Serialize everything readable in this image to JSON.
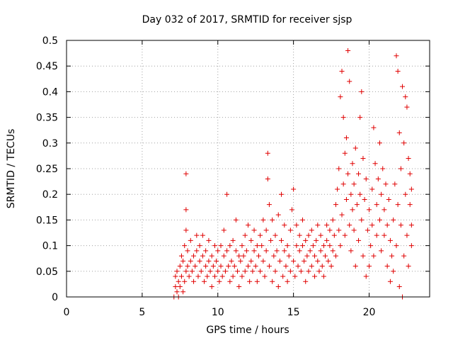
{
  "chart_data": {
    "type": "scatter",
    "title": "Day 032 of 2017, SRMTID for receiver sjsp",
    "xlabel": "GPS time / hours",
    "ylabel": "SRMTID / TECUs",
    "xlim": [
      0,
      24
    ],
    "ylim": [
      0,
      0.5
    ],
    "xticks": [
      "0",
      "5",
      "10",
      "15",
      "20"
    ],
    "yticks": [
      "0",
      "0.05",
      "0.1",
      "0.15",
      "0.2",
      "0.25",
      "0.3",
      "0.35",
      "0.4",
      "0.45",
      "0.5"
    ],
    "grid": true,
    "marker": "+",
    "marker_color": "#e00000",
    "series": [
      {
        "points": [
          [
            7.1,
            0.0
          ],
          [
            7.2,
            0.02
          ],
          [
            7.2,
            0.04
          ],
          [
            7.3,
            0.01
          ],
          [
            7.3,
            0.05
          ],
          [
            7.4,
            0.03
          ],
          [
            7.4,
            0.0
          ],
          [
            7.5,
            0.06
          ],
          [
            7.5,
            0.02
          ],
          [
            7.6,
            0.08
          ],
          [
            7.6,
            0.04
          ],
          [
            7.7,
            0.01
          ],
          [
            7.7,
            0.07
          ],
          [
            7.8,
            0.03
          ],
          [
            7.8,
            0.1
          ],
          [
            7.9,
            0.05
          ],
          [
            7.9,
            0.13
          ],
          [
            7.9,
            0.17
          ],
          [
            7.9,
            0.24
          ],
          [
            8.0,
            0.06
          ],
          [
            8.0,
            0.09
          ],
          [
            8.1,
            0.04
          ],
          [
            8.2,
            0.07
          ],
          [
            8.2,
            0.11
          ],
          [
            8.3,
            0.05
          ],
          [
            8.4,
            0.08
          ],
          [
            8.4,
            0.03
          ],
          [
            8.5,
            0.06
          ],
          [
            8.6,
            0.09
          ],
          [
            8.6,
            0.12
          ],
          [
            8.7,
            0.04
          ],
          [
            8.8,
            0.07
          ],
          [
            8.8,
            0.1
          ],
          [
            8.9,
            0.05
          ],
          [
            9.0,
            0.08
          ],
          [
            9.0,
            0.12
          ],
          [
            9.1,
            0.03
          ],
          [
            9.2,
            0.06
          ],
          [
            9.2,
            0.09
          ],
          [
            9.3,
            0.04
          ],
          [
            9.4,
            0.07
          ],
          [
            9.4,
            0.11
          ],
          [
            9.5,
            0.05
          ],
          [
            9.6,
            0.08
          ],
          [
            9.6,
            0.02
          ],
          [
            9.7,
            0.06
          ],
          [
            9.8,
            0.1
          ],
          [
            9.8,
            0.04
          ],
          [
            9.9,
            0.07
          ],
          [
            10.0,
            0.05
          ],
          [
            10.0,
            0.09
          ],
          [
            10.1,
            0.03
          ],
          [
            10.2,
            0.06
          ],
          [
            10.2,
            0.1
          ],
          [
            10.3,
            0.04
          ],
          [
            10.4,
            0.08
          ],
          [
            10.4,
            0.13
          ],
          [
            10.5,
            0.05
          ],
          [
            10.6,
            0.09
          ],
          [
            10.6,
            0.2
          ],
          [
            10.7,
            0.06
          ],
          [
            10.8,
            0.03
          ],
          [
            10.8,
            0.1
          ],
          [
            10.9,
            0.07
          ],
          [
            11.0,
            0.04
          ],
          [
            11.0,
            0.11
          ],
          [
            11.1,
            0.06
          ],
          [
            11.2,
            0.09
          ],
          [
            11.2,
            0.15
          ],
          [
            11.3,
            0.05
          ],
          [
            11.4,
            0.08
          ],
          [
            11.4,
            0.02
          ],
          [
            11.5,
            0.07
          ],
          [
            11.6,
            0.1
          ],
          [
            11.6,
            0.04
          ],
          [
            11.7,
            0.08
          ],
          [
            11.8,
            0.12
          ],
          [
            11.8,
            0.05
          ],
          [
            11.9,
            0.09
          ],
          [
            12.0,
            0.06
          ],
          [
            12.0,
            0.14
          ],
          [
            12.1,
            0.03
          ],
          [
            12.2,
            0.07
          ],
          [
            12.2,
            0.11
          ],
          [
            12.3,
            0.05
          ],
          [
            12.4,
            0.09
          ],
          [
            12.4,
            0.13
          ],
          [
            12.5,
            0.06
          ],
          [
            12.6,
            0.1
          ],
          [
            12.6,
            0.03
          ],
          [
            12.7,
            0.08
          ],
          [
            12.8,
            0.12
          ],
          [
            12.8,
            0.05
          ],
          [
            12.9,
            0.1
          ],
          [
            13.0,
            0.07
          ],
          [
            13.0,
            0.15
          ],
          [
            13.1,
            0.04
          ],
          [
            13.2,
            0.09
          ],
          [
            13.2,
            0.13
          ],
          [
            13.3,
            0.28
          ],
          [
            13.3,
            0.23
          ],
          [
            13.4,
            0.06
          ],
          [
            13.4,
            0.18
          ],
          [
            13.5,
            0.11
          ],
          [
            13.6,
            0.03
          ],
          [
            13.6,
            0.15
          ],
          [
            13.7,
            0.08
          ],
          [
            13.8,
            0.05
          ],
          [
            13.8,
            0.12
          ],
          [
            13.9,
            0.09
          ],
          [
            14.0,
            0.02
          ],
          [
            14.0,
            0.16
          ],
          [
            14.1,
            0.07
          ],
          [
            14.2,
            0.11
          ],
          [
            14.2,
            0.2
          ],
          [
            14.3,
            0.04
          ],
          [
            14.4,
            0.09
          ],
          [
            14.4,
            0.14
          ],
          [
            14.5,
            0.06
          ],
          [
            14.6,
            0.1
          ],
          [
            14.6,
            0.03
          ],
          [
            14.7,
            0.08
          ],
          [
            14.8,
            0.13
          ],
          [
            14.8,
            0.05
          ],
          [
            14.9,
            0.17
          ],
          [
            15.0,
            0.07
          ],
          [
            15.0,
            0.21
          ],
          [
            15.1,
            0.04
          ],
          [
            15.2,
            0.1
          ],
          [
            15.2,
            0.14
          ],
          [
            15.3,
            0.06
          ],
          [
            15.4,
            0.09
          ],
          [
            15.4,
            0.12
          ],
          [
            15.5,
            0.05
          ],
          [
            15.6,
            0.1
          ],
          [
            15.6,
            0.15
          ],
          [
            15.7,
            0.07
          ],
          [
            15.8,
            0.03
          ],
          [
            15.8,
            0.11
          ],
          [
            15.9,
            0.08
          ],
          [
            16.0,
            0.12
          ],
          [
            16.0,
            0.05
          ],
          [
            16.1,
            0.09
          ],
          [
            16.2,
            0.13
          ],
          [
            16.2,
            0.06
          ],
          [
            16.3,
            0.1
          ],
          [
            16.4,
            0.04
          ],
          [
            16.4,
            0.08
          ],
          [
            16.5,
            0.11
          ],
          [
            16.6,
            0.07
          ],
          [
            16.6,
            0.14
          ],
          [
            16.7,
            0.05
          ],
          [
            16.8,
            0.09
          ],
          [
            16.8,
            0.12
          ],
          [
            16.9,
            0.06
          ],
          [
            17.0,
            0.1
          ],
          [
            17.0,
            0.04
          ],
          [
            17.1,
            0.08
          ],
          [
            17.2,
            0.11
          ],
          [
            17.2,
            0.14
          ],
          [
            17.3,
            0.07
          ],
          [
            17.4,
            0.1
          ],
          [
            17.4,
            0.13
          ],
          [
            17.5,
            0.06
          ],
          [
            17.6,
            0.09
          ],
          [
            17.6,
            0.15
          ],
          [
            17.7,
            0.12
          ],
          [
            17.8,
            0.18
          ],
          [
            17.8,
            0.08
          ],
          [
            17.9,
            0.21
          ],
          [
            18.0,
            0.13
          ],
          [
            18.0,
            0.25
          ],
          [
            18.1,
            0.1
          ],
          [
            18.1,
            0.39
          ],
          [
            18.2,
            0.44
          ],
          [
            18.2,
            0.16
          ],
          [
            18.3,
            0.22
          ],
          [
            18.3,
            0.35
          ],
          [
            18.4,
            0.12
          ],
          [
            18.4,
            0.28
          ],
          [
            18.5,
            0.19
          ],
          [
            18.5,
            0.31
          ],
          [
            18.6,
            0.48
          ],
          [
            18.6,
            0.24
          ],
          [
            18.7,
            0.14
          ],
          [
            18.7,
            0.42
          ],
          [
            18.8,
            0.2
          ],
          [
            18.8,
            0.09
          ],
          [
            18.9,
            0.26
          ],
          [
            18.9,
            0.17
          ],
          [
            19.0,
            0.22
          ],
          [
            19.0,
            0.13
          ],
          [
            19.1,
            0.29
          ],
          [
            19.1,
            0.06
          ],
          [
            19.2,
            0.18
          ],
          [
            19.3,
            0.24
          ],
          [
            19.3,
            0.11
          ],
          [
            19.4,
            0.35
          ],
          [
            19.4,
            0.2
          ],
          [
            19.5,
            0.4
          ],
          [
            19.5,
            0.15
          ],
          [
            19.6,
            0.27
          ],
          [
            19.6,
            0.08
          ],
          [
            19.7,
            0.19
          ],
          [
            19.8,
            0.04
          ],
          [
            19.8,
            0.23
          ],
          [
            19.9,
            0.13
          ],
          [
            20.0,
            0.06
          ],
          [
            20.0,
            0.17
          ],
          [
            20.1,
            0.1
          ],
          [
            20.2,
            0.21
          ],
          [
            20.2,
            0.14
          ],
          [
            20.3,
            0.33
          ],
          [
            20.3,
            0.08
          ],
          [
            20.4,
            0.26
          ],
          [
            20.5,
            0.18
          ],
          [
            20.5,
            0.12
          ],
          [
            20.6,
            0.23
          ],
          [
            20.7,
            0.3
          ],
          [
            20.7,
            0.15
          ],
          [
            20.8,
            0.2
          ],
          [
            20.8,
            0.09
          ],
          [
            20.9,
            0.25
          ],
          [
            21.0,
            0.17
          ],
          [
            21.0,
            0.12
          ],
          [
            21.1,
            0.22
          ],
          [
            21.2,
            0.14
          ],
          [
            21.2,
            0.06
          ],
          [
            21.3,
            0.19
          ],
          [
            21.4,
            0.03
          ],
          [
            21.4,
            0.11
          ],
          [
            21.5,
            0.08
          ],
          [
            21.6,
            0.15
          ],
          [
            21.6,
            0.05
          ],
          [
            21.7,
            0.22
          ],
          [
            21.8,
            0.1
          ],
          [
            21.8,
            0.47
          ],
          [
            21.9,
            0.44
          ],
          [
            21.9,
            0.18
          ],
          [
            22.0,
            0.32
          ],
          [
            22.0,
            0.02
          ],
          [
            22.1,
            0.25
          ],
          [
            22.1,
            0.14
          ],
          [
            22.2,
            0.41
          ],
          [
            22.2,
            0.0
          ],
          [
            22.3,
            0.3
          ],
          [
            22.3,
            0.08
          ],
          [
            22.4,
            0.39
          ],
          [
            22.4,
            0.2
          ],
          [
            22.5,
            0.37
          ],
          [
            22.5,
            0.12
          ],
          [
            22.6,
            0.27
          ],
          [
            22.6,
            0.06
          ],
          [
            22.7,
            0.24
          ],
          [
            22.7,
            0.18
          ],
          [
            22.8,
            0.1
          ],
          [
            22.8,
            0.21
          ],
          [
            22.8,
            0.14
          ]
        ]
      }
    ]
  }
}
